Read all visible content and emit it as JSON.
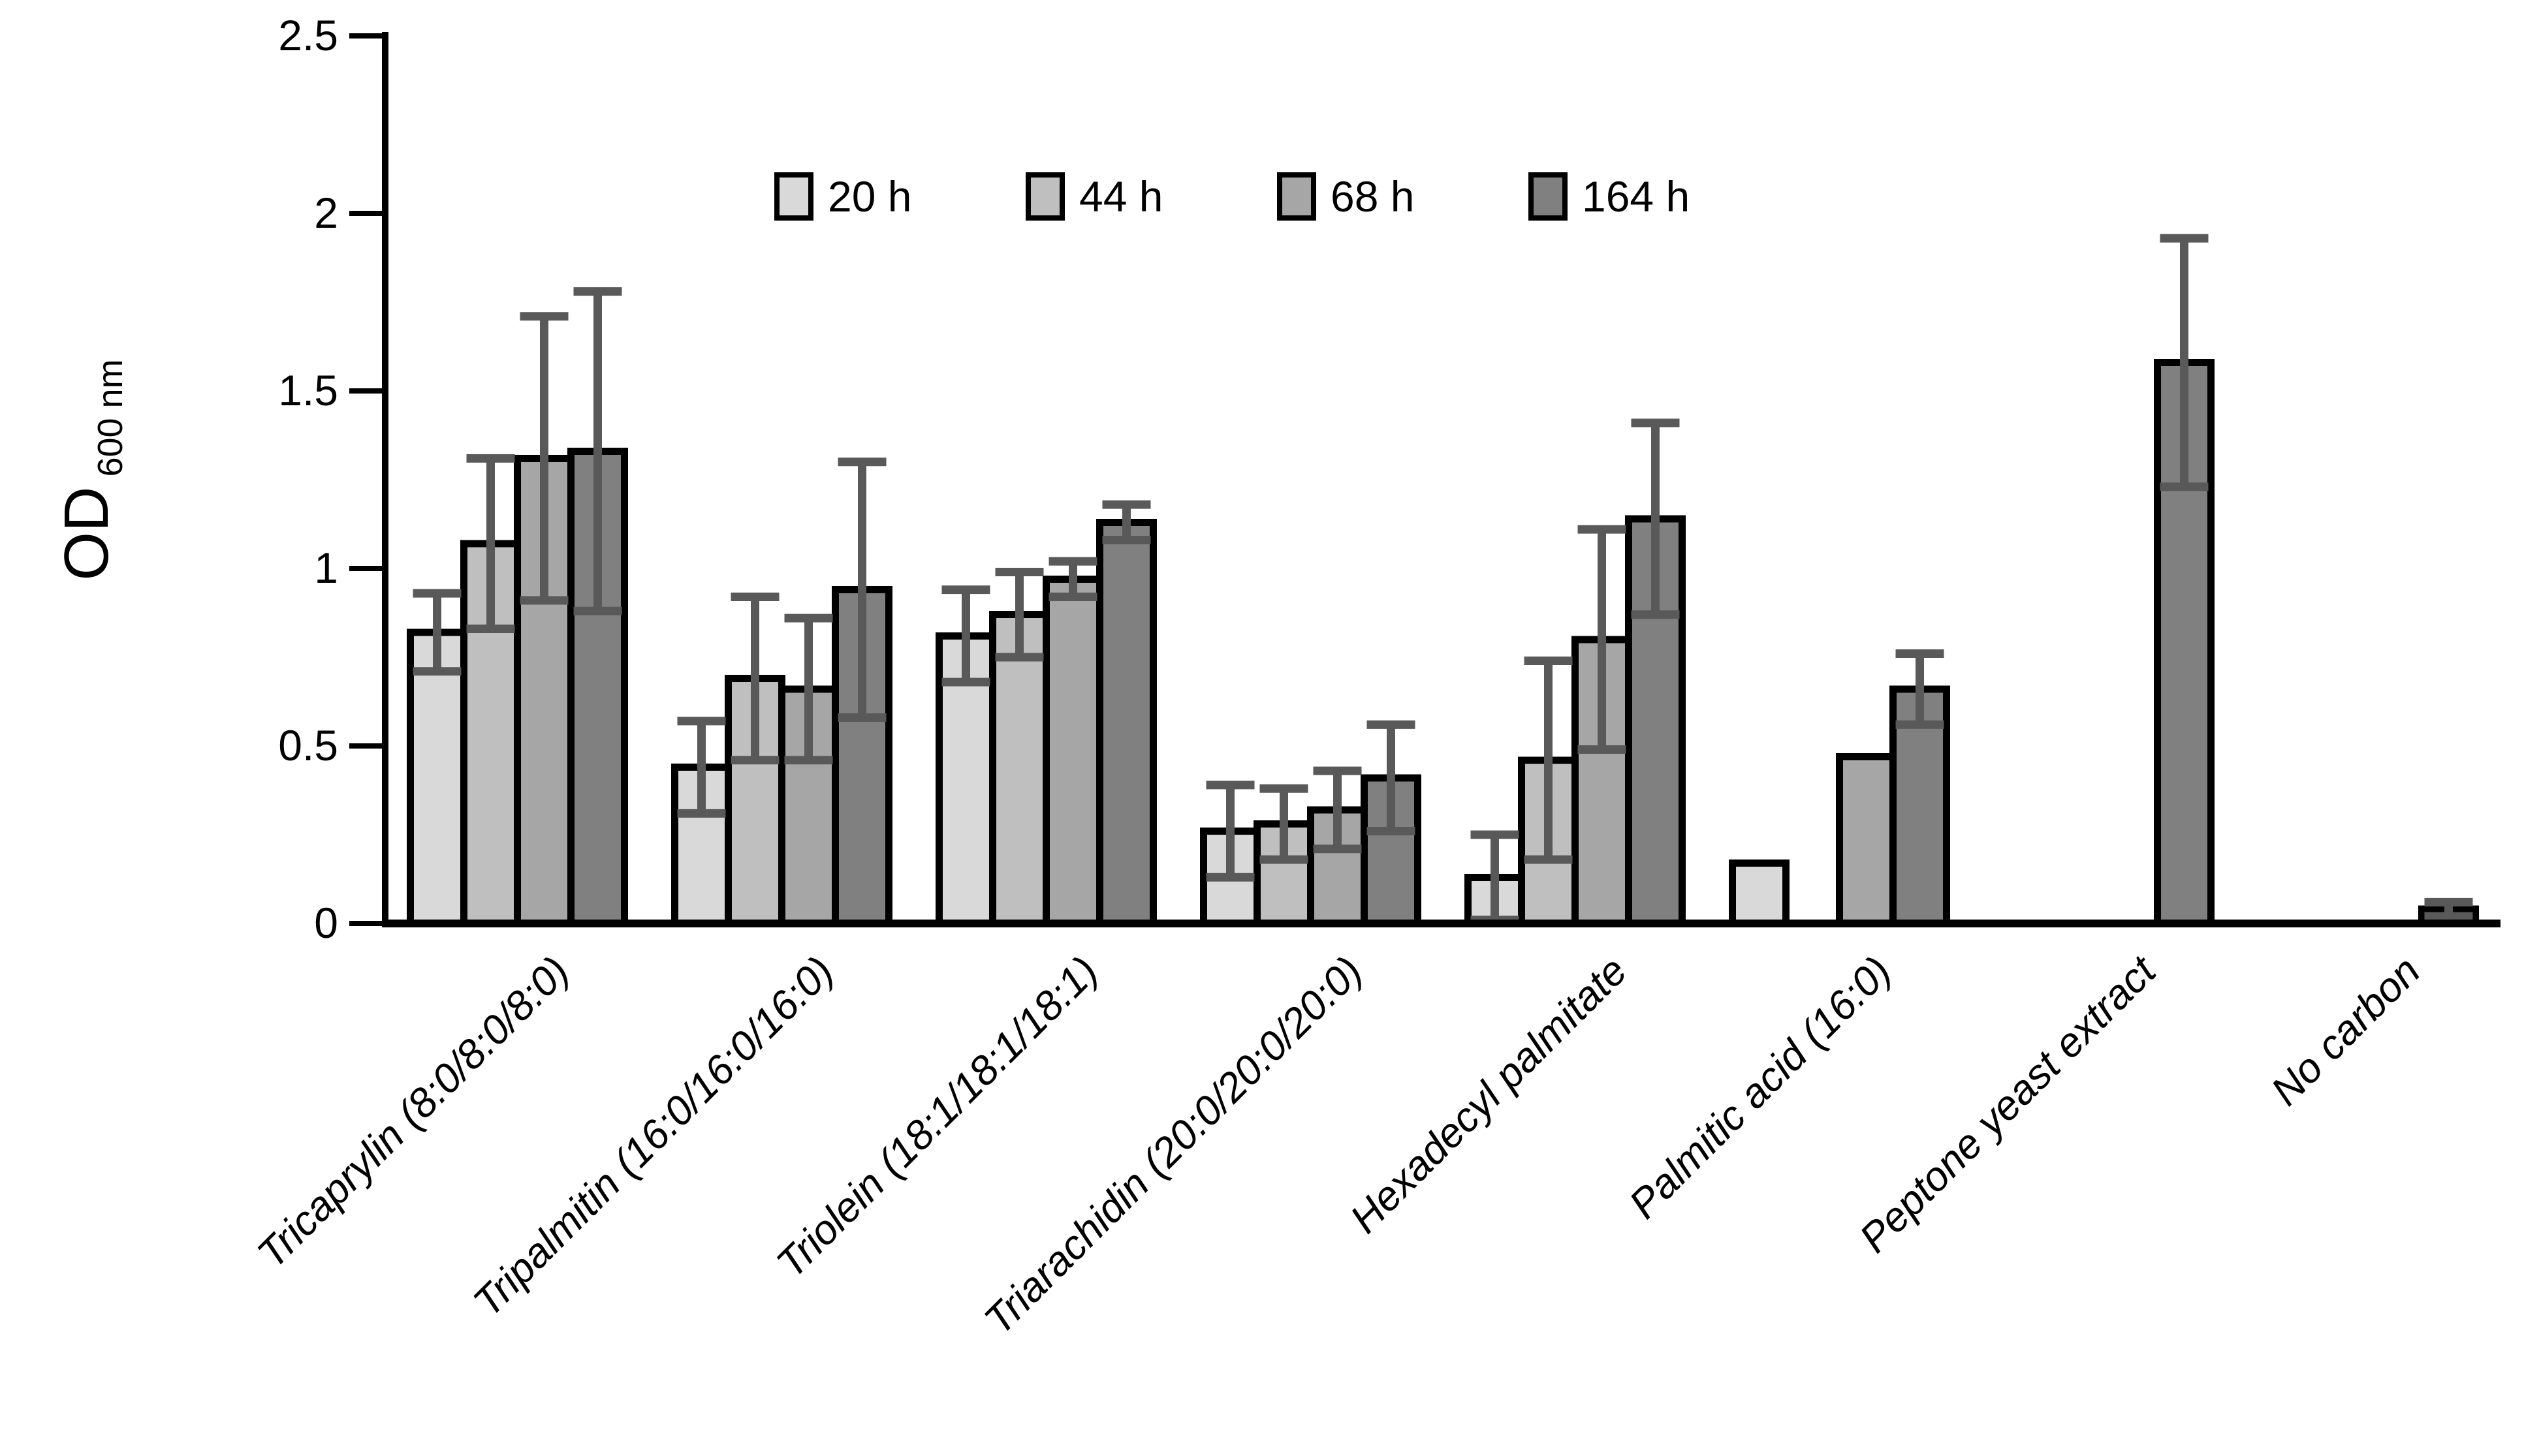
{
  "chart_data": {
    "type": "bar",
    "title": "",
    "ylabel": "OD 600 nm",
    "ylabel_main": "OD",
    "ylabel_sub": "600 nm",
    "xlabel": "",
    "ylim": [
      0,
      2.5
    ],
    "yticks": [
      0,
      0.5,
      1,
      1.5,
      2,
      2.5
    ],
    "ytick_labels": [
      "0",
      "0.5",
      "1",
      "1.5",
      "2",
      "2.5"
    ],
    "grid": false,
    "legend_position": "top-center",
    "categories": [
      "Tricaprylin (8:0/8:0/8:0)",
      "Tripalmitin (16:0/16:0/16:0)",
      "Triolein (18:1/18:1/18:1)",
      "Triarachidin (20:0/20:0/20:0)",
      "Hexadecyl palmitate",
      "Palmitic acid (16:0)",
      "Peptone yeast extract",
      "No carbon"
    ],
    "series": [
      {
        "name": "20 h",
        "color": "#d9d9d9",
        "values": [
          0.82,
          0.44,
          0.81,
          0.26,
          0.13,
          0.17,
          0,
          0
        ],
        "errors": [
          0.11,
          0.13,
          0.13,
          0.13,
          0.12,
          0,
          0,
          0
        ]
      },
      {
        "name": "44 h",
        "color": "#bfbfbf",
        "values": [
          1.07,
          0.69,
          0.87,
          0.28,
          0.46,
          0,
          0,
          0
        ],
        "errors": [
          0.24,
          0.23,
          0.12,
          0.1,
          0.28,
          0,
          0,
          0
        ]
      },
      {
        "name": "68 h",
        "color": "#a6a6a6",
        "values": [
          1.31,
          0.66,
          0.97,
          0.32,
          0.8,
          0.47,
          0,
          0
        ],
        "errors": [
          0.4,
          0.2,
          0.05,
          0.11,
          0.31,
          0,
          0,
          0
        ]
      },
      {
        "name": "164 h",
        "color": "#808080",
        "values": [
          1.33,
          0.94,
          1.13,
          0.41,
          1.14,
          0.66,
          1.58,
          0.04
        ],
        "errors": [
          0.45,
          0.36,
          0.05,
          0.15,
          0.27,
          0.1,
          0.35,
          0.02
        ]
      }
    ],
    "bar_border_color": "#000000",
    "error_bar_color": "#595959",
    "axis_color": "#000000",
    "background_color": "#ffffff"
  }
}
